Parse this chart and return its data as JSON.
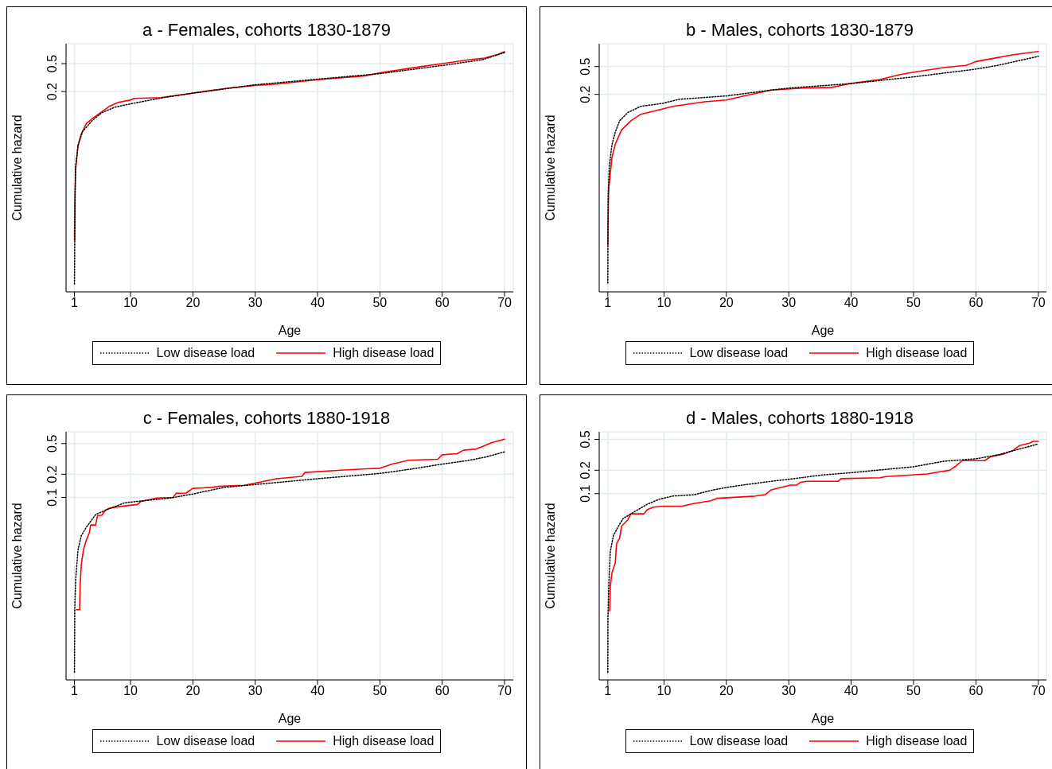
{
  "chart_data": [
    {
      "type": "line",
      "title": "a - Females, cohorts 1830-1879",
      "xlabel": "Age",
      "ylabel": "Cumulative hazard",
      "xlim": [
        -0.35,
        71.4
      ],
      "xticks": [
        1,
        10,
        20,
        30,
        40,
        50,
        60,
        70
      ],
      "ylim": [
        0.00028,
        0.96
      ],
      "yticks": [
        0.2,
        0.5
      ],
      "log": "y",
      "grid": true,
      "legend": "bottom",
      "marker": "none",
      "series": [
        {
          "name": "Low disease load",
          "color": "#000000",
          "line_style": "dotted",
          "x": [
            1,
            1.05,
            1.15,
            1.57,
            2.3,
            3.9,
            5.4,
            7.5,
            10.6,
            15.3,
            20,
            30,
            40,
            50,
            60,
            66.5,
            70
          ],
          "values": [
            0.00036,
            0.0015,
            0.016,
            0.034,
            0.054,
            0.078,
            0.1,
            0.12,
            0.137,
            0.164,
            0.19,
            0.25,
            0.3,
            0.36,
            0.47,
            0.57,
            0.72
          ]
        },
        {
          "name": "High disease load",
          "color": "#ff0000",
          "line_style": "solid",
          "x": [
            1,
            1.05,
            1.2,
            1.57,
            2.1,
            2.9,
            3.9,
            5.2,
            6.7,
            8,
            9.8,
            10.6,
            14.8,
            20,
            25,
            30,
            33.4,
            40,
            47.6,
            50,
            55.6,
            60,
            64.4,
            66.8,
            69,
            70
          ],
          "values": [
            0.0015,
            0.0056,
            0.016,
            0.034,
            0.05,
            0.07,
            0.083,
            0.1,
            0.125,
            0.14,
            0.15,
            0.16,
            0.164,
            0.19,
            0.22,
            0.245,
            0.255,
            0.295,
            0.335,
            0.37,
            0.44,
            0.5,
            0.57,
            0.6,
            0.68,
            0.74
          ]
        }
      ]
    },
    {
      "type": "line",
      "title": "b - Males, cohorts 1830-1879",
      "xlabel": "Age",
      "ylabel": "Cumulative hazard",
      "xlim": [
        -0.38,
        71.3
      ],
      "xticks": [
        1,
        10,
        20,
        30,
        40,
        50,
        60,
        70
      ],
      "ylim": [
        0.0003,
        1.06
      ],
      "yticks": [
        0.2,
        0.5
      ],
      "log": "y",
      "grid": true,
      "legend": "bottom",
      "marker": "none",
      "series": [
        {
          "name": "Low disease load",
          "color": "#000000",
          "line_style": "dotted",
          "x": [
            1,
            1.05,
            1.25,
            1.66,
            2.2,
            2.9,
            4.2,
            6.3,
            9.8,
            12.4,
            20,
            27.7,
            30,
            40,
            50,
            60,
            63.5,
            70
          ],
          "values": [
            0.0004,
            0.0073,
            0.019,
            0.038,
            0.058,
            0.084,
            0.11,
            0.135,
            0.149,
            0.17,
            0.19,
            0.234,
            0.246,
            0.285,
            0.356,
            0.46,
            0.52,
            0.7
          ]
        },
        {
          "name": "High disease load",
          "color": "#ff0000",
          "line_style": "solid",
          "x": [
            1,
            1.02,
            1.15,
            1.66,
            2.2,
            3.2,
            4.7,
            6.3,
            9.8,
            11.4,
            16.5,
            20,
            22.6,
            27.2,
            32.3,
            36.9,
            40,
            44.6,
            47.7,
            50,
            55.3,
            58.4,
            60,
            63,
            66,
            70
          ],
          "values": [
            0.0014,
            0.0028,
            0.009,
            0.025,
            0.039,
            0.062,
            0.084,
            0.104,
            0.124,
            0.135,
            0.157,
            0.166,
            0.188,
            0.231,
            0.246,
            0.252,
            0.288,
            0.326,
            0.382,
            0.415,
            0.49,
            0.52,
            0.59,
            0.66,
            0.74,
            0.82
          ]
        }
      ]
    },
    {
      "type": "line",
      "title": "c - Females, cohorts 1880-1918",
      "xlabel": "Age",
      "ylabel": "Cumulative hazard",
      "xlim": [
        -0.35,
        71.4
      ],
      "xticks": [
        1,
        10,
        20,
        30,
        40,
        50,
        60,
        70
      ],
      "ylim": [
        0.00043,
        0.71
      ],
      "yticks": [
        0.1,
        0.2,
        0.5
      ],
      "log": "y",
      "grid": true,
      "legend": "bottom",
      "marker": "none",
      "series": [
        {
          "name": "Low disease load",
          "color": "#000000",
          "line_style": "dotted",
          "x": [
            1,
            1.05,
            1.2,
            1.57,
            2.1,
            2.9,
            4.4,
            6.5,
            9,
            11.1,
            16.3,
            20,
            25,
            30,
            40,
            50,
            55,
            60,
            64,
            67,
            70
          ],
          "values": [
            0.00054,
            0.0037,
            0.0087,
            0.021,
            0.032,
            0.041,
            0.06,
            0.071,
            0.085,
            0.089,
            0.098,
            0.111,
            0.135,
            0.147,
            0.175,
            0.205,
            0.233,
            0.271,
            0.3,
            0.335,
            0.39
          ]
        },
        {
          "name": "High disease load",
          "color": "#ff0000",
          "line_style": "solid",
          "x": [
            1.3,
            1.83,
            1.9,
            2.1,
            2.45,
            2.9,
            3.4,
            3.6,
            4.4,
            4.7,
            5.4,
            6,
            6.5,
            8,
            11.1,
            11.7,
            14.2,
            16.8,
            17.3,
            18.9,
            20,
            23,
            24,
            28.2,
            30.3,
            33.4,
            37.5,
            38,
            43.7,
            47.9,
            50,
            52,
            54.6,
            59.3,
            60,
            62.4,
            63.4,
            65.5,
            68,
            70
          ],
          "values": [
            0.0035,
            0.0035,
            0.0069,
            0.0135,
            0.021,
            0.028,
            0.035,
            0.044,
            0.044,
            0.058,
            0.059,
            0.069,
            0.072,
            0.076,
            0.081,
            0.089,
            0.0985,
            0.1,
            0.113,
            0.114,
            0.131,
            0.135,
            0.139,
            0.144,
            0.155,
            0.175,
            0.188,
            0.211,
            0.226,
            0.235,
            0.239,
            0.271,
            0.304,
            0.313,
            0.358,
            0.369,
            0.41,
            0.425,
            0.515,
            0.57
          ]
        }
      ]
    },
    {
      "type": "line",
      "title": "d - Males, cohorts 1880-1918",
      "xlabel": "Age",
      "ylabel": "Cumulative hazard",
      "xlim": [
        -0.38,
        71.3
      ],
      "xticks": [
        1,
        10,
        20,
        30,
        40,
        50,
        60,
        70
      ],
      "ylim": [
        0.0004,
        0.625
      ],
      "yticks": [
        0.1,
        0.2,
        0.5
      ],
      "log": "y",
      "grid": true,
      "legend": "bottom",
      "marker": "none",
      "series": [
        {
          "name": "Low disease load",
          "color": "#000000",
          "line_style": "dotted",
          "x": [
            1,
            1.02,
            1.15,
            1.4,
            1.9,
            2.7,
            3.45,
            5.2,
            7.3,
            9.3,
            11.4,
            14.9,
            17.5,
            20,
            22.6,
            27.7,
            30,
            35.4,
            40,
            50,
            54.8,
            60,
            63.5,
            70
          ],
          "values": [
            0.0005,
            0.0025,
            0.0064,
            0.018,
            0.029,
            0.038,
            0.048,
            0.058,
            0.073,
            0.085,
            0.093,
            0.097,
            0.11,
            0.12,
            0.129,
            0.146,
            0.153,
            0.174,
            0.186,
            0.222,
            0.261,
            0.281,
            0.315,
            0.437
          ]
        },
        {
          "name": "High disease load",
          "color": "#ff0000",
          "line_style": "solid",
          "x": [
            1.3,
            1.4,
            1.66,
            2.2,
            2.4,
            2.9,
            3.2,
            4.2,
            4.7,
            6.8,
            7.3,
            8.3,
            9.8,
            12.9,
            14.9,
            17.5,
            18.5,
            24.6,
            26.2,
            27.2,
            28.7,
            30.3,
            31.3,
            31.8,
            32.8,
            37.9,
            38.4,
            44.6,
            45.6,
            49.7,
            52.2,
            54.2,
            55.8,
            56.8,
            57.8,
            61.4,
            62.4,
            64.5,
            66,
            67,
            68.6,
            69.2,
            70
          ],
          "values": [
            0.0031,
            0.0064,
            0.0095,
            0.0129,
            0.0226,
            0.027,
            0.038,
            0.046,
            0.055,
            0.055,
            0.062,
            0.067,
            0.069,
            0.069,
            0.075,
            0.081,
            0.087,
            0.093,
            0.097,
            0.112,
            0.12,
            0.129,
            0.129,
            0.139,
            0.144,
            0.144,
            0.156,
            0.16,
            0.166,
            0.174,
            0.179,
            0.191,
            0.2,
            0.227,
            0.266,
            0.266,
            0.3,
            0.324,
            0.362,
            0.417,
            0.446,
            0.471,
            0.471
          ]
        }
      ]
    }
  ]
}
